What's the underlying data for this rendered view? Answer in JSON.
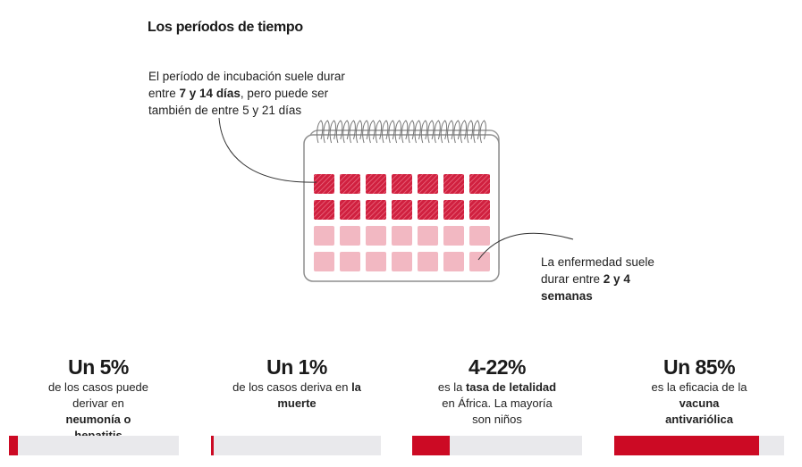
{
  "title": "Los períodos de tiempo",
  "incubation_note": {
    "pre": "El período de incubación suele durar entre ",
    "bold": "7 y 14 días",
    "post": ", pero puede ser también de entre 5 y 21 días"
  },
  "duration_note": {
    "pre": "La enfermedad suele durar entre ",
    "bold": "2 y 4 semanas"
  },
  "calendar": {
    "rows": 4,
    "cols": 7,
    "highlighted_rows": 2,
    "color_dark": "#d0203f",
    "color_light": "#f2b8c2"
  },
  "stats": [
    {
      "value": "Un 5%",
      "pre": "de los casos puede derivar en ",
      "bold": "neumonía o hepatitis",
      "post": "",
      "fraction": 0.05
    },
    {
      "value": "Un 1%",
      "pre": "de los casos deriva en ",
      "bold": "la muerte",
      "post": "",
      "fraction": 0.01
    },
    {
      "value": "4-22%",
      "pre": "es la ",
      "bold": "tasa de letalidad",
      "post": " en África. La mayoría son niños",
      "fraction": 0.22
    },
    {
      "value": "Un 85%",
      "pre": "es la eficacia de la ",
      "bold": "vacuna antivariólica",
      "post": "",
      "fraction": 0.85
    }
  ],
  "colors": {
    "accent": "#cc0a24",
    "track": "#e9e9ec"
  }
}
